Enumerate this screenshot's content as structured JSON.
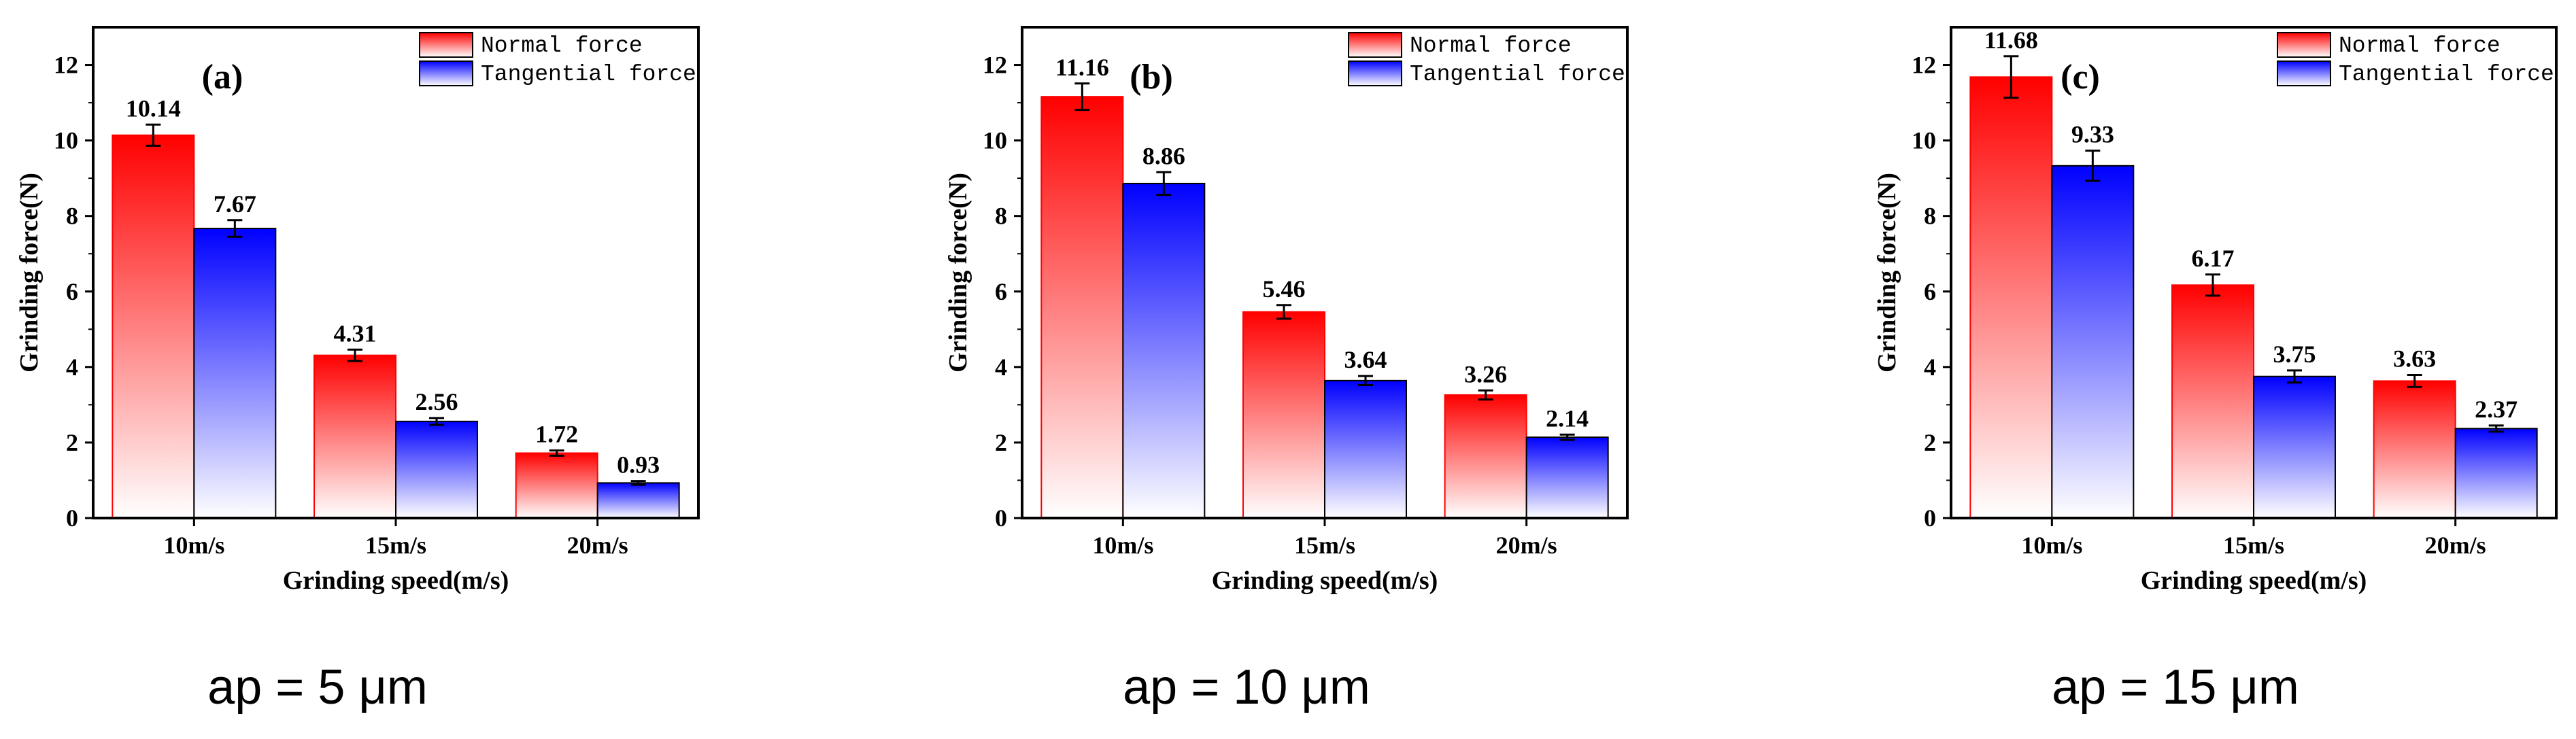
{
  "chart_data": [
    {
      "type": "bar",
      "panel_label": "(a)",
      "caption": "ap = 5 μm",
      "categories": [
        "10m/s",
        "15m/s",
        "20m/s"
      ],
      "series": [
        {
          "name": "Normal force",
          "values": [
            10.14,
            4.31,
            1.72
          ],
          "errors": [
            0.28,
            0.15,
            0.07
          ],
          "labels": [
            "10.14",
            "4.31",
            "1.72"
          ]
        },
        {
          "name": "Tangential force",
          "values": [
            7.67,
            2.56,
            0.93
          ],
          "errors": [
            0.22,
            0.09,
            0.05
          ],
          "labels": [
            "7.67",
            "2.56",
            "0.93"
          ]
        }
      ],
      "xlabel": "Grinding speed(m/s)",
      "ylabel": "Grinding force(N)",
      "ylim": [
        0,
        13
      ],
      "yticks": [
        "0",
        "2",
        "4",
        "6",
        "8",
        "10",
        "12"
      ],
      "legend_position": "top-right"
    },
    {
      "type": "bar",
      "panel_label": "(b)",
      "caption": "ap = 10 μm",
      "categories": [
        "10m/s",
        "15m/s",
        "20m/s"
      ],
      "series": [
        {
          "name": "Normal force",
          "values": [
            11.16,
            5.46,
            3.26
          ],
          "errors": [
            0.35,
            0.18,
            0.12
          ],
          "labels": [
            "11.16",
            "5.46",
            "3.26"
          ]
        },
        {
          "name": "Tangential force",
          "values": [
            8.86,
            3.64,
            2.14
          ],
          "errors": [
            0.3,
            0.12,
            0.07
          ],
          "labels": [
            "8.86",
            "3.64",
            "2.14"
          ]
        }
      ],
      "xlabel": "Grinding speed(m/s)",
      "ylabel": "Grinding force(N)",
      "ylim": [
        0,
        13
      ],
      "yticks": [
        "0",
        "2",
        "4",
        "6",
        "8",
        "10",
        "12"
      ],
      "legend_position": "top-right"
    },
    {
      "type": "bar",
      "panel_label": "(c)",
      "caption": "ap = 15 μm",
      "categories": [
        "10m/s",
        "15m/s",
        "20m/s"
      ],
      "series": [
        {
          "name": "Normal force",
          "values": [
            11.68,
            6.17,
            3.63
          ],
          "errors": [
            0.55,
            0.28,
            0.16
          ],
          "labels": [
            "11.68",
            "6.17",
            "3.63"
          ]
        },
        {
          "name": "Tangential force",
          "values": [
            9.33,
            3.75,
            2.37
          ],
          "errors": [
            0.4,
            0.16,
            0.08
          ],
          "labels": [
            "9.33",
            "3.75",
            "2.37"
          ]
        }
      ],
      "xlabel": "Grinding speed(m/s)",
      "ylabel": "Grinding force(N)",
      "ylim": [
        0,
        13
      ],
      "yticks": [
        "0",
        "2",
        "4",
        "6",
        "8",
        "10",
        "12"
      ],
      "legend_position": "top-right"
    }
  ],
  "colors": {
    "normal_top": "#ff0000",
    "normal_bottom": "#ffffff",
    "tangential_top": "#0000ff",
    "tangential_bottom": "#ffffff",
    "axis": "#000000"
  }
}
